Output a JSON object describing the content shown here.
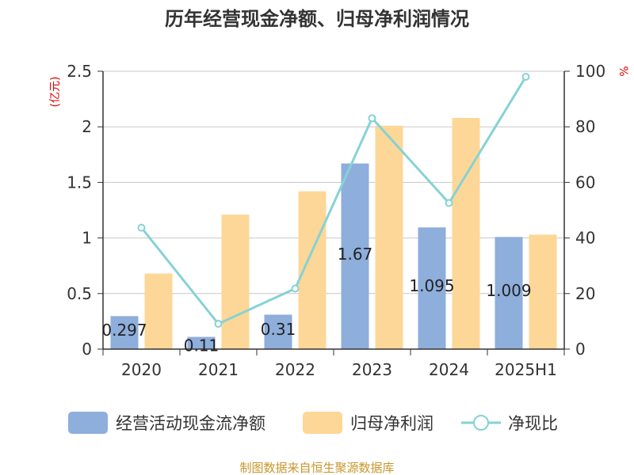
{
  "chart_data": {
    "type": "bar",
    "title": "历年经营现金净额、归母净利润情况",
    "categories": [
      "2020",
      "2021",
      "2022",
      "2023",
      "2024",
      "2025H1"
    ],
    "y_left": {
      "unit": "(亿元)",
      "ylim": [
        0,
        2.5
      ],
      "ticks": [
        "0",
        "0.5",
        "1",
        "1.5",
        "2",
        "2.5"
      ]
    },
    "y_right": {
      "unit": "%",
      "ylim": [
        0,
        100
      ],
      "ticks": [
        "0",
        "20",
        "40",
        "60",
        "80",
        "100"
      ]
    },
    "series": [
      {
        "name": "经营活动现金流净额",
        "type": "bar",
        "axis": "left",
        "color": "#8eaedb",
        "values": [
          0.297,
          0.11,
          0.31,
          1.67,
          1.095,
          1.009
        ],
        "labels": [
          "0.297",
          "0.11",
          "0.31",
          "1.67",
          "1.095",
          "1.009"
        ]
      },
      {
        "name": "归母净利润",
        "type": "bar",
        "axis": "left",
        "color": "#fdd797",
        "values": [
          0.68,
          1.21,
          1.42,
          2.01,
          2.08,
          1.03
        ]
      },
      {
        "name": "净现比",
        "type": "line",
        "axis": "right",
        "color": "#86d2d6",
        "values": [
          43.7,
          9.1,
          21.8,
          83.1,
          52.6,
          98.0
        ]
      }
    ],
    "grid": true,
    "legend": "bottom"
  },
  "source": "制图数据来自恒生聚源数据库"
}
